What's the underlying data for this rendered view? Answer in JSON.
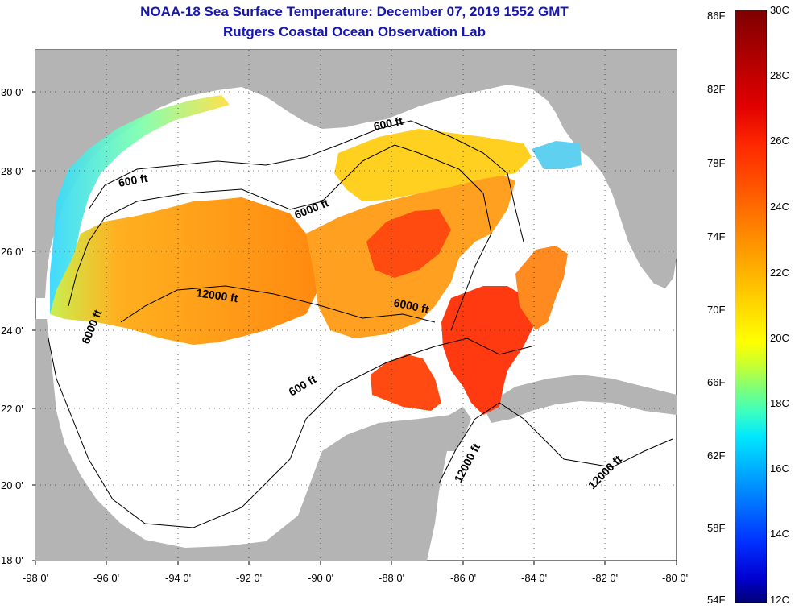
{
  "title": {
    "line1": "NOAA-18 Sea Surface Temperature:  December 07, 2019 1552 GMT",
    "line2": "Rutgers Coastal Ocean Observation Lab"
  },
  "map": {
    "lat_labels": [
      "30 0'",
      "28 0'",
      "26 0'",
      "24 0'",
      "22 0'",
      "20 0'",
      "18 0'"
    ],
    "lon_labels": [
      "-98 0'",
      "-96 0'",
      "-94 0'",
      "-92 0'",
      "-90 0'",
      "-88 0'",
      "-86 0'",
      "-84 0'",
      "-82 0'",
      "-80 0'"
    ],
    "contour_labels": [
      "600 ft",
      "600 ft",
      "6000 ft",
      "12000 ft",
      "6000 ft",
      "6000 ft",
      "600 ft",
      "12000 ft",
      "12000 ft"
    ],
    "colors": {
      "land": "#b4b4b4",
      "ocean_nodata": "#ffffff"
    }
  },
  "colorbar": {
    "fahrenheit": [
      "86F",
      "82F",
      "78F",
      "74F",
      "70F",
      "66F",
      "62F",
      "58F",
      "54F"
    ],
    "celsius": [
      "30C",
      "28C",
      "26C",
      "24C",
      "22C",
      "20C",
      "18C",
      "16C",
      "14C",
      "12C"
    ]
  }
}
